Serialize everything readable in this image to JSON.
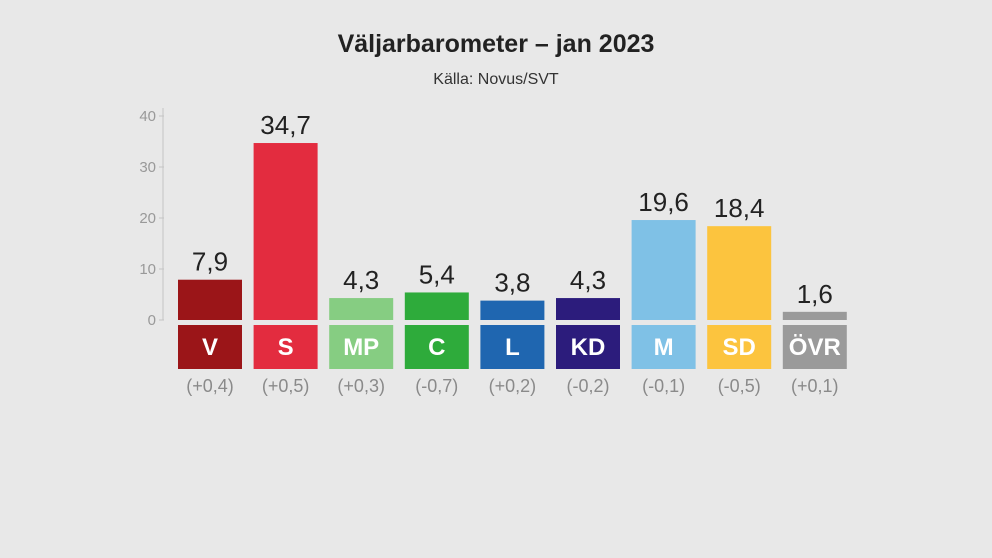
{
  "title": "Väljarbarometer – jan 2023",
  "subtitle": "Källa: Novus/SVT",
  "chart_data": {
    "type": "bar",
    "title": "Väljarbarometer – jan 2023",
    "subtitle": "Källa: Novus/SVT",
    "categories": [
      "V",
      "S",
      "MP",
      "C",
      "L",
      "KD",
      "M",
      "SD",
      "ÖVR"
    ],
    "values": [
      7.9,
      34.7,
      4.3,
      5.4,
      3.8,
      4.3,
      19.6,
      18.4,
      1.6
    ],
    "value_labels": [
      "7,9",
      "34,7",
      "4,3",
      "5,4",
      "3,8",
      "4,3",
      "19,6",
      "18,4",
      "1,6"
    ],
    "changes": [
      "(+0,4)",
      "(+0,5)",
      "(+0,3)",
      "(-0,7)",
      "(+0,2)",
      "(-0,2)",
      "(-0,1)",
      "(-0,5)",
      "(+0,1)"
    ],
    "colors": [
      "#9b1518",
      "#e32c3f",
      "#86cd82",
      "#2eab3b",
      "#1f66b0",
      "#2c1c7c",
      "#7fc1e6",
      "#fcc43e",
      "#9a9a9a"
    ],
    "ylim": [
      0,
      40
    ],
    "yticks": [
      0,
      10,
      20,
      30,
      40
    ],
    "xlabel": "",
    "ylabel": "",
    "grid": false,
    "legend": "none"
  }
}
